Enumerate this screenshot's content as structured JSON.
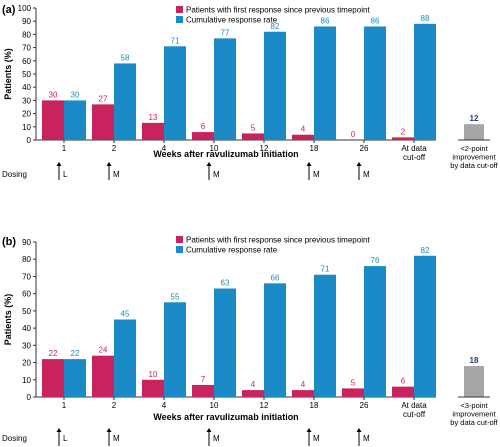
{
  "colors": {
    "first": "#c8235e",
    "cumulative": "#1a8bc6",
    "extra": "#a6a6a6",
    "extra_label": "#1f3d7a",
    "axis": "#333333"
  },
  "common": {
    "ylabel": "Patients (%)",
    "xlabel": "Weeks after ravulizumab initiation",
    "yticks": [
      "0",
      "10",
      "20",
      "30",
      "40",
      "50",
      "60",
      "70",
      "80",
      "90",
      "100"
    ],
    "categories": [
      "1",
      "2",
      "4",
      "10",
      "12",
      "18",
      "26",
      "At data cut-off"
    ],
    "dosing_label": "Dosing",
    "dosing": [
      "L",
      "M",
      "",
      "M",
      "",
      "M",
      "M",
      ""
    ]
  },
  "chart_data": [
    {
      "type": "bar",
      "panel": "(a)",
      "legend": [
        "Patients with first response since previous timepoint",
        "Cumulative response rate"
      ],
      "categories": [
        "1",
        "2",
        "4",
        "10",
        "12",
        "18",
        "26",
        "At data cut-off"
      ],
      "series": [
        {
          "name": "Patients with first response since previous timepoint",
          "values": [
            30,
            27,
            13,
            6,
            5,
            4,
            0,
            2
          ]
        },
        {
          "name": "Cumulative response rate",
          "values": [
            30,
            58,
            71,
            77,
            82,
            86,
            86,
            88
          ]
        }
      ],
      "extra": {
        "label": "<2-point improvement by data cut-off",
        "value": 12
      },
      "ylim": [
        0,
        100
      ],
      "ylabel": "Patients (%)",
      "xlabel": "Weeks after ravulizumab initiation"
    },
    {
      "type": "bar",
      "panel": "(b)",
      "legend": [
        "Patients with first response since previous timepoint",
        "Cumulative response rate"
      ],
      "categories": [
        "1",
        "2",
        "4",
        "10",
        "12",
        "18",
        "26",
        "At data cut-off"
      ],
      "series": [
        {
          "name": "Patients with first response since previous timepoint",
          "values": [
            22,
            24,
            10,
            7,
            4,
            4,
            5,
            6
          ]
        },
        {
          "name": "Cumulative response rate",
          "values": [
            22,
            45,
            55,
            63,
            66,
            71,
            76,
            82
          ]
        }
      ],
      "extra": {
        "label": "<3-point improvement by data cut-off",
        "value": 18
      },
      "ylim": [
        0,
        90
      ],
      "ylabel": "Patients (%)",
      "xlabel": "Weeks after ravulizumab initiation"
    }
  ]
}
